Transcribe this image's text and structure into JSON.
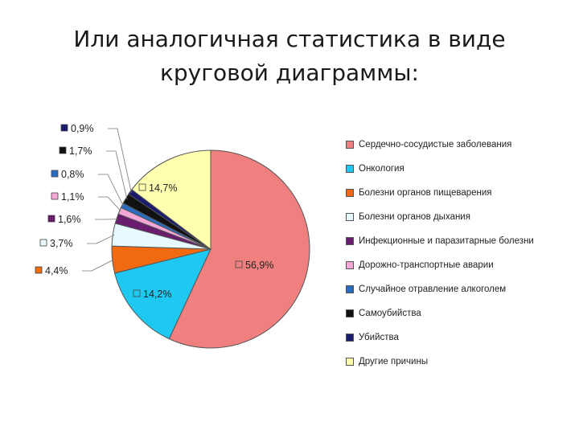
{
  "slide": {
    "title": "Или аналогичная статистика в виде круговой диаграммы:"
  },
  "chart_data": {
    "type": "pie",
    "title": "",
    "legend_position": "right",
    "slices": [
      {
        "label": "Сердечно-сосудистые заболевания",
        "value": 56.9,
        "value_label": "56,9%",
        "color": "#F08080"
      },
      {
        "label": "Онкология",
        "value": 14.2,
        "value_label": "14,2%",
        "color": "#1EC8F0"
      },
      {
        "label": "Болезни органов пищеварения",
        "value": 4.4,
        "value_label": "4,4%",
        "color": "#F26A10"
      },
      {
        "label": "Болезни органов дыхания",
        "value": 3.7,
        "value_label": "3,7%",
        "color": "#E6FAFF"
      },
      {
        "label": "Инфекционные и паразитарные болезни",
        "value": 1.6,
        "value_label": "1,6%",
        "color": "#6A1C6E"
      },
      {
        "label": "Дорожно-транспортные аварии",
        "value": 1.1,
        "value_label": "1,1%",
        "color": "#F5A8D8"
      },
      {
        "label": "Случайное отравление алкоголем",
        "value": 0.8,
        "value_label": "0,8%",
        "color": "#2A6CC0"
      },
      {
        "label": "Самоубийства",
        "value": 1.7,
        "value_label": "1,7%",
        "color": "#111111"
      },
      {
        "label": "Убийства",
        "value": 0.9,
        "value_label": "0,9%",
        "color": "#1A1A6E"
      },
      {
        "label": "Другие причины",
        "value": 14.7,
        "value_label": "14,7%",
        "color": "#FFFFB0"
      }
    ]
  }
}
